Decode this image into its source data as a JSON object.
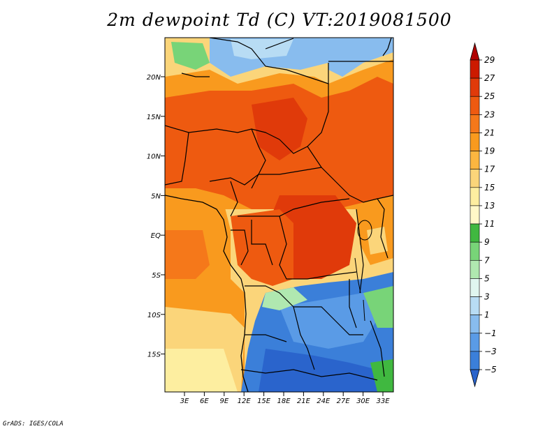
{
  "title": "2m dewpoint Td (C) VT:2019081500",
  "footer": "GrADS: IGES/COLA",
  "map": {
    "lat_labels": [
      "20N",
      "15N",
      "10N",
      "5N",
      "EQ",
      "5S",
      "10S",
      "15S"
    ],
    "lon_labels": [
      "3E",
      "6E",
      "9E",
      "12E",
      "15E",
      "18E",
      "21E",
      "24E",
      "27E",
      "30E",
      "33E"
    ]
  },
  "colorbar": {
    "labels": [
      "29",
      "27",
      "25",
      "23",
      "21",
      "19",
      "17",
      "15",
      "13",
      "11",
      "9",
      "7",
      "5",
      "3",
      "1",
      "−1",
      "−3",
      "−5"
    ],
    "colors": [
      "#b00000",
      "#cc1a00",
      "#e03a0a",
      "#ee5a10",
      "#f5781a",
      "#f99a1e",
      "#fbb640",
      "#fbd57a",
      "#fdeea0",
      "#fff8c8",
      "#40b840",
      "#78d478",
      "#b0e8b0",
      "#e0f6f0",
      "#b8dcf4",
      "#88bcee",
      "#5a9be6",
      "#3b7fd9",
      "#2a64cc"
    ]
  },
  "colors": {
    "hot": "#ee5a10",
    "warm": "#f99a1e",
    "pale": "#fbd57a",
    "cool": "#3b7fd9",
    "green": "#40b840"
  }
}
